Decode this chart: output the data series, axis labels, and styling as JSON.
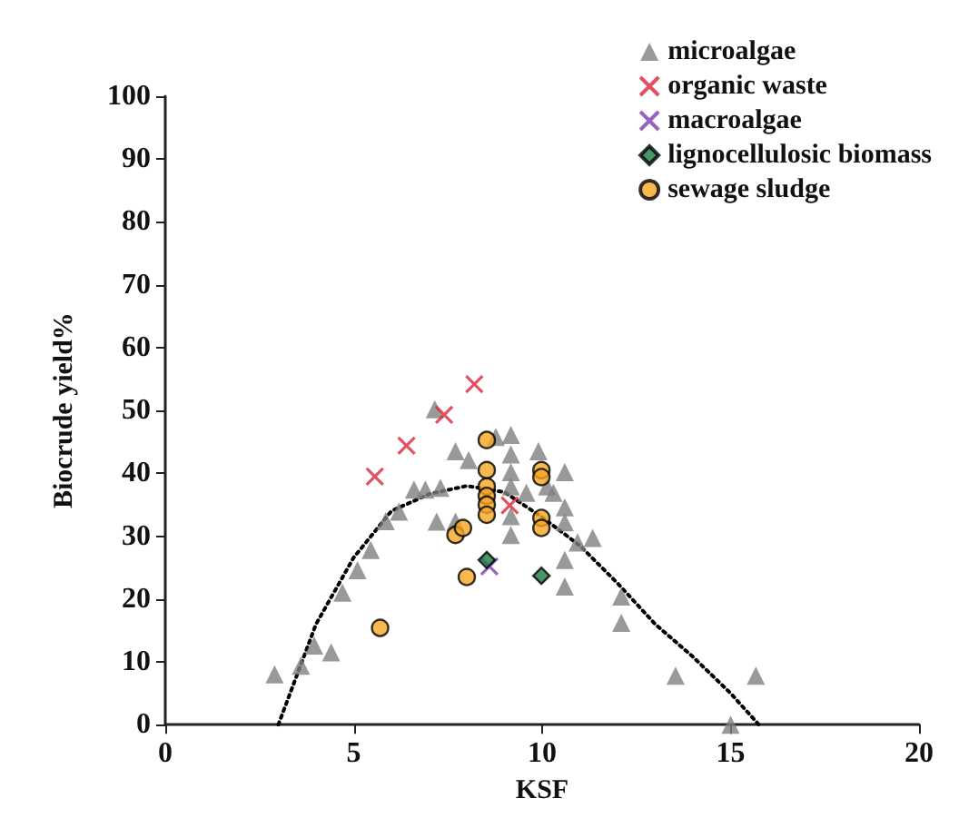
{
  "chart_data": {
    "type": "scatter",
    "xlabel": "KSF",
    "ylabel": "Biocrude yield%",
    "xlim": [
      0,
      20
    ],
    "xticks": [
      0,
      5,
      10,
      15,
      20
    ],
    "ylim": [
      0,
      100
    ],
    "yticks": [
      0,
      10,
      20,
      30,
      40,
      50,
      60,
      70,
      80,
      90,
      100
    ],
    "grid": false,
    "legend": "top right",
    "series": [
      {
        "name": "microalgae",
        "color": "#7f7f7f",
        "marker": "triangle",
        "x": [
          2.9,
          3.6,
          3.95,
          4.4,
          4.7,
          5.1,
          5.45,
          5.85,
          6.2,
          6.6,
          6.9,
          7.3,
          7.2,
          7.7,
          7.7,
          8.05,
          7.15,
          8.77,
          9.17,
          9.17,
          9.9,
          9.17,
          10.6,
          9.17,
          9.58,
          10.13,
          10.3,
          10.6,
          9.17,
          10.6,
          9.17,
          10.94,
          11.34,
          10.6,
          10.6,
          12.1,
          12.1,
          13.54,
          15.67,
          15.0
        ],
        "values": [
          8,
          9.4,
          12.6,
          11.5,
          21,
          24.6,
          27.8,
          32.4,
          33.9,
          37.4,
          37.4,
          37.7,
          32.3,
          32.3,
          43.5,
          42.1,
          50.2,
          45.8,
          46.1,
          43,
          43.5,
          40.2,
          40.2,
          37.9,
          36.9,
          37.9,
          36.9,
          34.6,
          33.2,
          32.2,
          30.2,
          29,
          29.7,
          26.2,
          22,
          20.4,
          16.2,
          7.8,
          7.8,
          0
        ]
      },
      {
        "name": "organic waste",
        "color": "#d9263a",
        "marker": "cross",
        "x": [
          5.56,
          6.4,
          7.4,
          8.2,
          9.14
        ],
        "values": [
          39.5,
          44.4,
          49.3,
          54.2,
          34.9
        ]
      },
      {
        "name": "macroalgae",
        "color": "#7b3fb0",
        "marker": "cross",
        "x": [
          8.6
        ],
        "values": [
          25.2
        ]
      },
      {
        "name": "lignocellulosic biomass",
        "color": "#1a7a40",
        "marker": "diamond",
        "x": [
          8.53,
          9.98
        ],
        "values": [
          26.2,
          23.7
        ]
      },
      {
        "name": "sewage sludge",
        "color": "#f5a623",
        "marker": "circle",
        "x": [
          5.7,
          7.7,
          7.9,
          8.0,
          8.53,
          8.53,
          8.53,
          8.53,
          8.53,
          8.53,
          9.98,
          9.98,
          9.98,
          9.98
        ],
        "values": [
          15.4,
          30.2,
          31.3,
          23.5,
          45.3,
          40.5,
          37.9,
          36.4,
          35,
          33.4,
          40.5,
          39.4,
          32.9,
          31.3
        ]
      },
      {
        "type": "line",
        "color": "#000000",
        "marker": "none",
        "line_style": "dotted",
        "x": [
          3,
          4,
          5,
          6,
          7,
          8,
          9,
          10,
          11,
          12,
          13,
          14,
          15,
          15.75
        ],
        "values": [
          0,
          16,
          26.6,
          34,
          36.7,
          38,
          37,
          33,
          28.5,
          22.5,
          16,
          10.8,
          5,
          0
        ]
      }
    ]
  }
}
